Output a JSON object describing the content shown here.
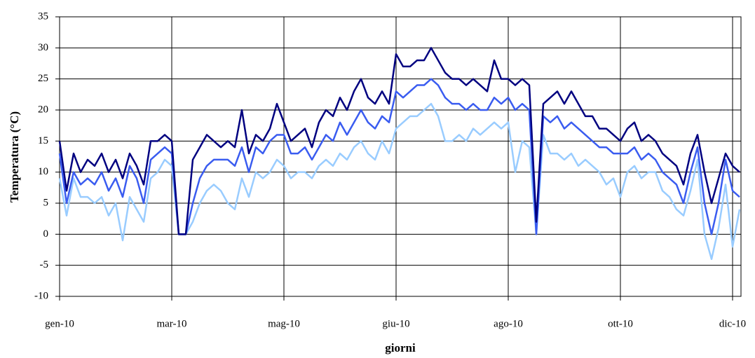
{
  "chart_data": {
    "type": "line",
    "y_label": "Temperatura (°C)",
    "x_label": "giorni",
    "categories": [
      "gen-10",
      null,
      null,
      null,
      null,
      null,
      null,
      null,
      null,
      null,
      null,
      null,
      null,
      null,
      null,
      null,
      "mar-10",
      null,
      null,
      null,
      null,
      null,
      null,
      null,
      null,
      null,
      null,
      null,
      null,
      null,
      null,
      null,
      "mag-10",
      null,
      null,
      null,
      null,
      null,
      null,
      null,
      null,
      null,
      null,
      null,
      null,
      null,
      null,
      null,
      "giu-10",
      null,
      null,
      null,
      null,
      null,
      null,
      null,
      null,
      null,
      null,
      null,
      null,
      null,
      null,
      null,
      "ago-10",
      null,
      null,
      null,
      null,
      null,
      null,
      null,
      null,
      null,
      null,
      null,
      null,
      null,
      null,
      null,
      "ott-10",
      null,
      null,
      null,
      null,
      null,
      null,
      null,
      null,
      null,
      null,
      null,
      null,
      null,
      null,
      null,
      "dic-10",
      null
    ],
    "series": [
      {
        "color": "#000080",
        "values": [
          15,
          7,
          13,
          10,
          12,
          11,
          13,
          10,
          12,
          9,
          13,
          11,
          8,
          15,
          15,
          16,
          15,
          0,
          0,
          12,
          14,
          16,
          15,
          14,
          15,
          14,
          20,
          13,
          16,
          15,
          17,
          21,
          18,
          15,
          16,
          17,
          14,
          18,
          20,
          19,
          22,
          20,
          23,
          25,
          22,
          21,
          23,
          21,
          29,
          27,
          27,
          28,
          28,
          30,
          28,
          26,
          25,
          25,
          24,
          25,
          24,
          23,
          28,
          25,
          25,
          24,
          25,
          24,
          2,
          21,
          22,
          23,
          21,
          23,
          21,
          19,
          19,
          17,
          17,
          16,
          15,
          17,
          18,
          15,
          16,
          15,
          13,
          12,
          11,
          8,
          13,
          16,
          10,
          5,
          9,
          13,
          11,
          10
        ]
      },
      {
        "color": "#3a5cf0",
        "values": [
          13,
          5,
          10,
          8,
          9,
          8,
          10,
          7,
          9,
          6,
          11,
          9,
          5,
          12,
          13,
          14,
          13,
          0,
          0,
          5,
          9,
          11,
          12,
          12,
          12,
          11,
          14,
          10,
          14,
          13,
          15,
          16,
          16,
          13,
          13,
          14,
          12,
          14,
          16,
          15,
          18,
          16,
          18,
          20,
          18,
          17,
          19,
          18,
          23,
          22,
          23,
          24,
          24,
          25,
          24,
          22,
          21,
          21,
          20,
          21,
          20,
          20,
          22,
          21,
          22,
          20,
          21,
          20,
          0,
          19,
          18,
          19,
          17,
          18,
          17,
          16,
          15,
          14,
          14,
          13,
          13,
          13,
          14,
          12,
          13,
          12,
          10,
          9,
          8,
          5,
          10,
          14,
          5,
          0,
          5,
          12,
          7,
          6
        ]
      },
      {
        "color": "#99ccff",
        "values": [
          9,
          3,
          9,
          6,
          6,
          5,
          6,
          3,
          5,
          -1,
          6,
          4,
          2,
          9,
          10,
          12,
          11,
          0,
          0,
          2,
          5,
          7,
          8,
          7,
          5,
          4,
          9,
          6,
          10,
          9,
          10,
          12,
          11,
          9,
          10,
          10,
          9,
          11,
          12,
          11,
          13,
          12,
          14,
          15,
          13,
          12,
          15,
          13,
          17,
          18,
          19,
          19,
          20,
          21,
          19,
          15,
          15,
          16,
          15,
          17,
          16,
          17,
          18,
          17,
          18,
          10,
          15,
          14,
          0,
          16,
          13,
          13,
          12,
          13,
          11,
          12,
          11,
          10,
          8,
          9,
          6,
          10,
          11,
          9,
          10,
          10,
          7,
          6,
          4,
          3,
          7,
          12,
          0,
          -4,
          1,
          8,
          -2,
          4
        ]
      }
    ],
    "ylim": [
      -10,
      35
    ],
    "yticks": [
      -10,
      -5,
      0,
      5,
      10,
      15,
      20,
      25,
      30,
      35
    ],
    "grid": true
  }
}
